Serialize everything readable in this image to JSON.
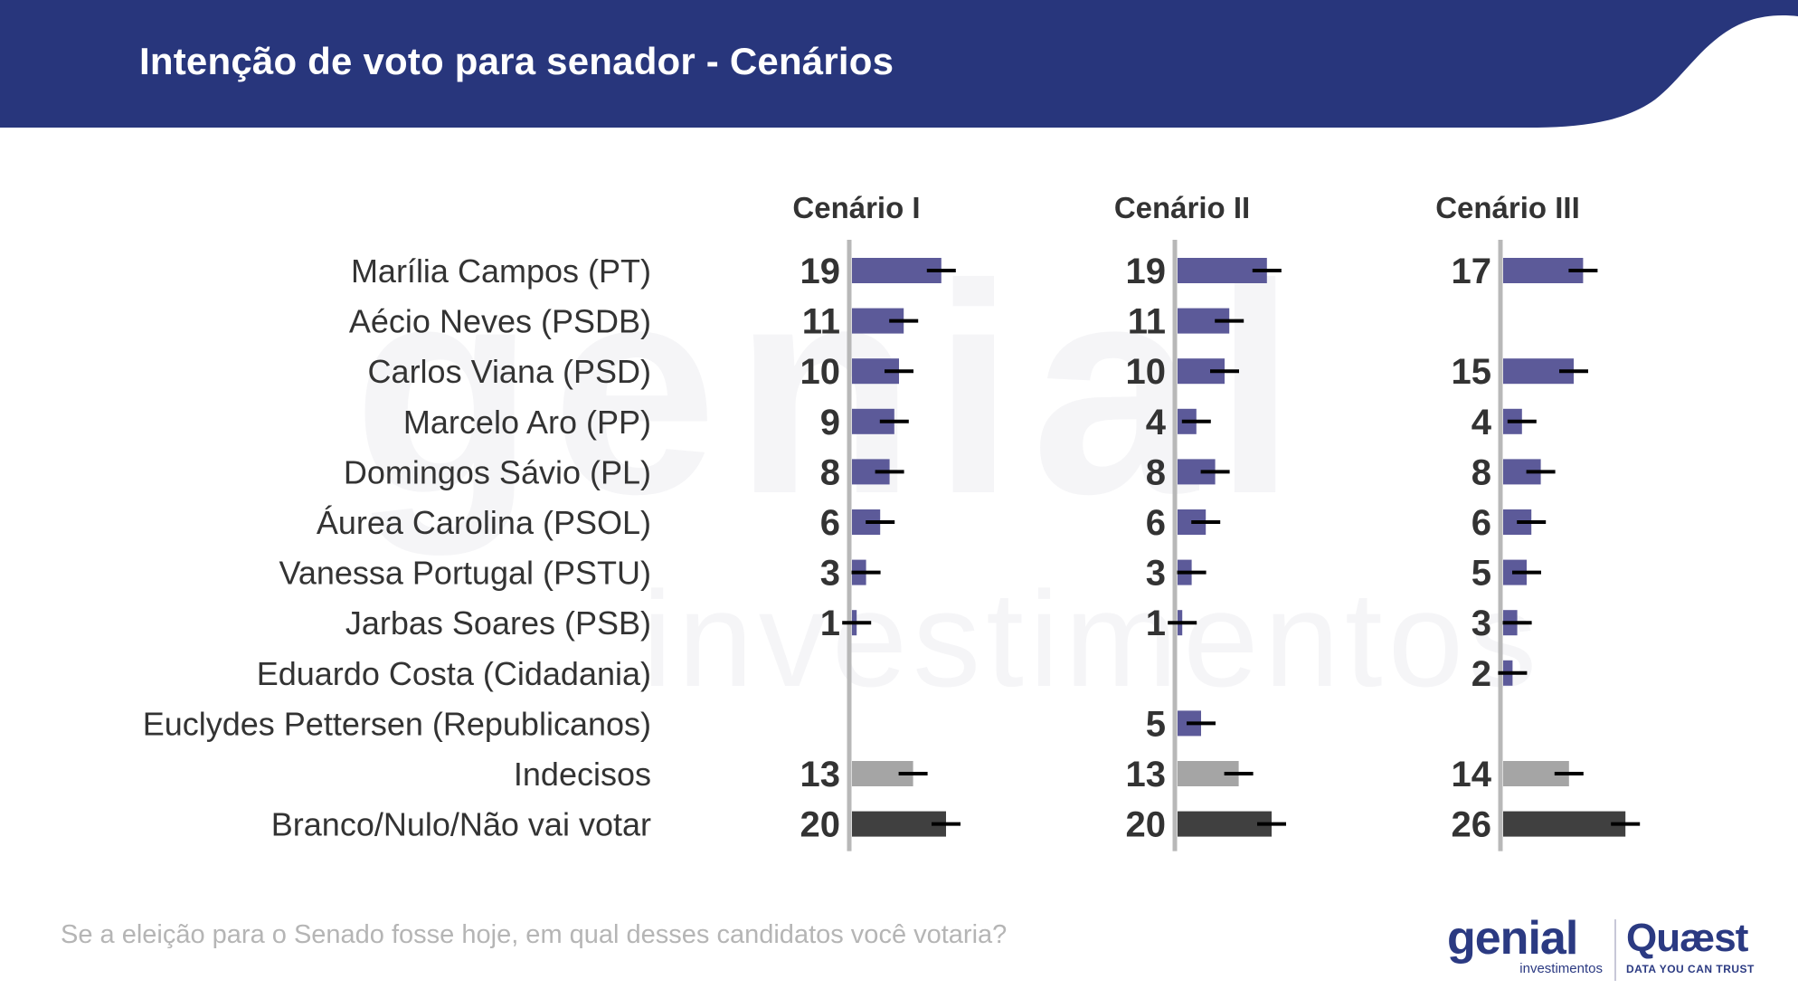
{
  "header": {
    "title": "Intenção de voto para senador - Cenários",
    "color": "#28367c"
  },
  "watermark": {
    "main": "genial",
    "sub": "investimentos"
  },
  "chart_data": {
    "type": "bar",
    "orientation": "horizontal",
    "categories": [
      "Marília Campos (PT)",
      "Aécio Neves (PSDB)",
      "Carlos Viana (PSD)",
      "Marcelo Aro (PP)",
      "Domingos Sávio (PL)",
      "Áurea Carolina (PSOL)",
      "Vanessa Portugal (PSTU)",
      "Jarbas Soares (PSB)",
      "Eduardo Costa (Cidadania)",
      "Euclydes Pettersen (Republicanos)",
      "Indecisos",
      "Branco/Nulo/Não vai votar"
    ],
    "series": [
      {
        "name": "Cenário I",
        "values": [
          19,
          11,
          10,
          9,
          8,
          6,
          3,
          1,
          null,
          null,
          13,
          20
        ]
      },
      {
        "name": "Cenário II",
        "values": [
          19,
          11,
          10,
          4,
          8,
          6,
          3,
          1,
          null,
          5,
          13,
          20
        ]
      },
      {
        "name": "Cenário III",
        "values": [
          17,
          null,
          15,
          4,
          8,
          6,
          5,
          3,
          2,
          null,
          14,
          26
        ]
      }
    ],
    "error_bars": true,
    "colors": {
      "candidate": "#5c5a99",
      "undecided": "#a5a5a5",
      "blank": "#404040",
      "axis": "#b8b8b8",
      "error": "#000000"
    }
  },
  "footer": {
    "question": "Se a eleição para o Senado fosse hoje, em qual desses candidatos você votaria?"
  },
  "logos": {
    "genial": "genial",
    "genial_sub": "investimentos",
    "quaest": "Quæst",
    "quaest_tagline": "DATA YOU CAN TRUST"
  }
}
